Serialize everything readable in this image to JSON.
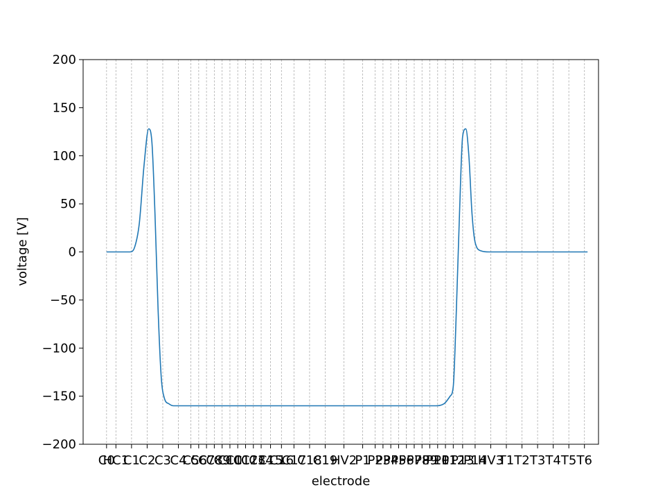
{
  "chart_data": {
    "type": "line",
    "title": "",
    "xlabel": "electrode",
    "ylabel": "voltage [V]",
    "ylim": [
      -200,
      200
    ],
    "yticks": [
      -200,
      -150,
      -100,
      -50,
      0,
      50,
      100,
      150,
      200
    ],
    "y_tick_labels": [
      "−200",
      "−150",
      "−100",
      "−50",
      "0",
      "50",
      "100",
      "150",
      "200"
    ],
    "x_tick_labels": [
      "C0",
      "HC1",
      "C1",
      "C2",
      "C3",
      "C4",
      "C5",
      "C6",
      "C7",
      "C8",
      "C9",
      "C10",
      "C11",
      "C12",
      "C13",
      "C14",
      "C15",
      "C16",
      "C17",
      "C18",
      "C19",
      "HV2",
      "P1",
      "P2",
      "P3",
      "P4",
      "P5",
      "P6",
      "P7",
      "P8",
      "P9",
      "P10",
      "P11",
      "P12",
      "P13",
      "P14",
      "HV3",
      "T1",
      "T2",
      "T3",
      "T4",
      "T5",
      "T6"
    ],
    "x_tick_positions": [
      0,
      0.6,
      1.6,
      2.6,
      3.6,
      4.6,
      5.4,
      5.9,
      6.4,
      6.9,
      7.4,
      7.9,
      8.4,
      8.9,
      9.4,
      9.9,
      10.5,
      11.2,
      12.0,
      13.0,
      14.0,
      15.2,
      16.4,
      17.2,
      17.7,
      18.2,
      18.7,
      19.2,
      19.7,
      20.2,
      20.7,
      21.2,
      21.7,
      22.2,
      22.8,
      23.6,
      24.6,
      25.6,
      26.6,
      27.6,
      28.6,
      29.6,
      30.6
    ],
    "xlim": [
      -1.5,
      31.5
    ],
    "grid": "vertical dashed at electrode positions",
    "series": [
      {
        "color": "#1f77b4",
        "x": [
          0,
          1.5,
          1.8,
          2.1,
          2.4,
          2.7,
          2.9,
          3.1,
          3.3,
          3.5,
          3.7,
          4.0,
          4.3,
          4.8,
          6.0,
          10.0,
          14.0,
          18.0,
          21.0,
          21.6,
          22.0,
          22.2,
          22.4,
          22.6,
          22.8,
          23.0,
          23.2,
          23.4,
          23.6,
          24.0,
          24.5,
          25.0,
          30.0,
          30.8
        ],
        "y": [
          0,
          0,
          5,
          30,
          90,
          128,
          115,
          40,
          -60,
          -130,
          -152,
          -158,
          -160,
          -160,
          -160,
          -160,
          -160,
          -160,
          -160,
          -158,
          -150,
          -140,
          -60,
          40,
          120,
          128,
          100,
          40,
          10,
          1,
          0,
          0,
          0,
          0
        ]
      }
    ]
  }
}
